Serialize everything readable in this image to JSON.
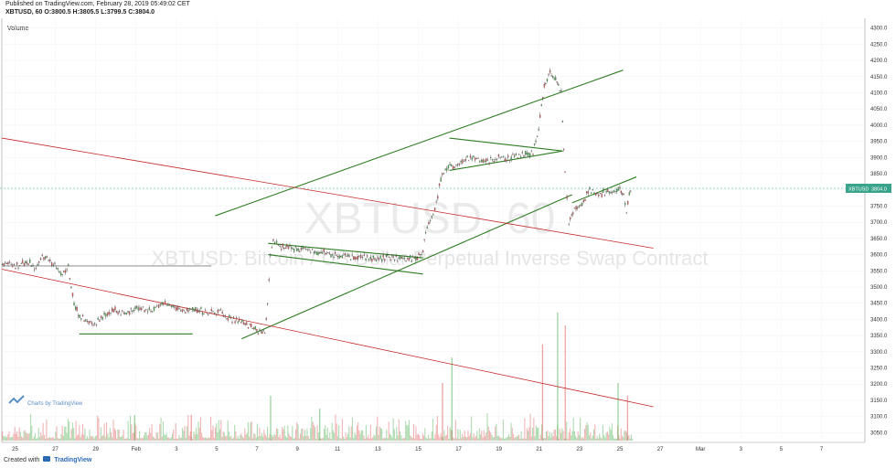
{
  "header": {
    "published": "Published on TradingView.com, February 28, 2019 05:49:02 CET",
    "ohlc": "XBTUSD, 60 O:3800.5 H:3805.5 L:3799.5 C:3804.0"
  },
  "volume_label": "Volume",
  "watermark": {
    "symbol": "XBTUSD, 60",
    "description": "XBTUSD: Bitcoin / US Dollar Perpetual Inverse Swap Contract"
  },
  "price_tag": {
    "symbol": "XBTUSD",
    "value": "3804.0"
  },
  "brand": {
    "logo_text": "Charts by TradingView",
    "created_with": "Created with",
    "name": "TradingView"
  },
  "colors": {
    "up": "#4caf50",
    "down": "#e05a5a",
    "channel_green": "#2e7d22",
    "channel_red": "#c62828",
    "price_line": "#3aa38b"
  },
  "chart_data": {
    "type": "candlestick",
    "title": "XBTUSD, 60",
    "y_ticks": [
      "4300.0",
      "4250.0",
      "4200.0",
      "4150.0",
      "4100.0",
      "4050.0",
      "4000.0",
      "3950.0",
      "3900.0",
      "3850.0",
      "3800.0",
      "3750.0",
      "3700.0",
      "3650.0",
      "3600.0",
      "3550.0",
      "3500.0",
      "3450.0",
      "3400.0",
      "3350.0",
      "3300.0",
      "3250.0",
      "3200.0",
      "3150.0",
      "3100.0",
      "3050.0"
    ],
    "x_ticks": [
      "25",
      "27",
      "29",
      "Feb",
      "3",
      "5",
      "7",
      "9",
      "11",
      "13",
      "15",
      "17",
      "19",
      "21",
      "23",
      "25",
      "27",
      "Mar",
      "3",
      "5",
      "7"
    ],
    "ylim": [
      3020,
      4330
    ],
    "price_path": [
      [
        24.3,
        3575
      ],
      [
        25.0,
        3565
      ],
      [
        25.6,
        3580
      ],
      [
        26.0,
        3560
      ],
      [
        26.5,
        3595
      ],
      [
        27.0,
        3570
      ],
      [
        27.4,
        3540
      ],
      [
        27.8,
        3560
      ],
      [
        28.1,
        3440
      ],
      [
        28.4,
        3410
      ],
      [
        28.8,
        3390
      ],
      [
        29.2,
        3385
      ],
      [
        29.7,
        3410
      ],
      [
        30.2,
        3430
      ],
      [
        30.8,
        3415
      ],
      [
        31.5,
        3440
      ],
      [
        32.0,
        3425
      ],
      [
        32.5,
        3435
      ],
      [
        33.0,
        3450
      ],
      [
        33.5,
        3435
      ],
      [
        34.0,
        3425
      ],
      [
        34.6,
        3430
      ],
      [
        35.2,
        3420
      ],
      [
        35.8,
        3425
      ],
      [
        36.4,
        3400
      ],
      [
        37.0,
        3390
      ],
      [
        37.4,
        3380
      ],
      [
        37.7,
        3370
      ],
      [
        38.0,
        3360
      ],
      [
        38.2,
        3358
      ],
      [
        38.35,
        3450
      ],
      [
        38.5,
        3600
      ],
      [
        38.65,
        3640
      ],
      [
        39.0,
        3625
      ],
      [
        39.6,
        3615
      ],
      [
        40.2,
        3620
      ],
      [
        40.8,
        3610
      ],
      [
        41.4,
        3605
      ],
      [
        42.0,
        3600
      ],
      [
        42.6,
        3595
      ],
      [
        43.2,
        3590
      ],
      [
        43.8,
        3588
      ],
      [
        44.4,
        3590
      ],
      [
        45.0,
        3590
      ],
      [
        45.6,
        3588
      ],
      [
        46.2,
        3590
      ],
      [
        46.5,
        3600
      ],
      [
        46.8,
        3680
      ],
      [
        47.2,
        3740
      ],
      [
        47.6,
        3850
      ],
      [
        48.0,
        3870
      ],
      [
        48.5,
        3880
      ],
      [
        49.0,
        3900
      ],
      [
        49.5,
        3895
      ],
      [
        50.0,
        3890
      ],
      [
        50.5,
        3900
      ],
      [
        51.0,
        3895
      ],
      [
        51.5,
        3905
      ],
      [
        52.0,
        3910
      ],
      [
        52.4,
        3915
      ],
      [
        52.7,
        3990
      ],
      [
        53.0,
        4120
      ],
      [
        53.3,
        4160
      ],
      [
        53.6,
        4140
      ],
      [
        53.9,
        4100
      ],
      [
        54.1,
        3850
      ],
      [
        54.3,
        3700
      ],
      [
        54.6,
        3740
      ],
      [
        55.0,
        3760
      ],
      [
        55.4,
        3800
      ],
      [
        55.8,
        3790
      ],
      [
        56.2,
        3790
      ],
      [
        56.6,
        3795
      ],
      [
        57.0,
        3800
      ],
      [
        57.2,
        3780
      ],
      [
        57.35,
        3730
      ],
      [
        57.5,
        3790
      ],
      [
        57.65,
        3804
      ]
    ],
    "lines": [
      {
        "name": "",
        "color": "green",
        "points": [
          [
            37.0,
            3340
          ],
          [
            54.5,
            3785
          ]
        ]
      },
      {
        "name": "",
        "color": "green",
        "points": [
          [
            35.6,
            3720
          ],
          [
            57.2,
            4170
          ]
        ]
      },
      {
        "name": "",
        "color": "green",
        "points": [
          [
            28.4,
            3355
          ],
          [
            34.4,
            3355
          ]
        ]
      },
      {
        "name": "",
        "color": "green",
        "points": [
          [
            38.4,
            3635
          ],
          [
            46.6,
            3590
          ]
        ]
      },
      {
        "name": "",
        "color": "green",
        "points": [
          [
            38.4,
            3600
          ],
          [
            46.6,
            3540
          ]
        ]
      },
      {
        "name": "",
        "color": "green",
        "points": [
          [
            48.0,
            3960
          ],
          [
            54.0,
            3920
          ]
        ]
      },
      {
        "name": "",
        "color": "green",
        "points": [
          [
            48.0,
            3860
          ],
          [
            54.0,
            3920
          ]
        ]
      },
      {
        "name": "",
        "color": "green",
        "points": [
          [
            54.5,
            3760
          ],
          [
            57.9,
            3840
          ]
        ]
      },
      {
        "name": "",
        "color": "red",
        "points": [
          [
            24.3,
            3960
          ],
          [
            58.8,
            3620
          ]
        ]
      },
      {
        "name": "",
        "color": "red",
        "points": [
          [
            24.3,
            3555
          ],
          [
            58.8,
            3130
          ]
        ]
      },
      {
        "name": "",
        "color": "gray",
        "points": [
          [
            24.3,
            3565
          ],
          [
            35.4,
            3565
          ]
        ]
      }
    ],
    "volume_spikes": [
      {
        "t": 38.5,
        "v": 0.35
      },
      {
        "t": 47.6,
        "v": 0.45
      },
      {
        "t": 48.1,
        "v": 0.65
      },
      {
        "t": 52.9,
        "v": 0.75
      },
      {
        "t": 53.7,
        "v": 1.0
      },
      {
        "t": 54.1,
        "v": 0.9
      },
      {
        "t": 56.9,
        "v": 0.45
      },
      {
        "t": 57.4,
        "v": 0.35
      },
      {
        "t": 41.1,
        "v": 0.25
      },
      {
        "t": 34.3,
        "v": 0.2
      },
      {
        "t": 31.3,
        "v": 0.2
      }
    ],
    "x_range": [
      24.3,
      70.0
    ],
    "grid": true,
    "legend": "none"
  }
}
